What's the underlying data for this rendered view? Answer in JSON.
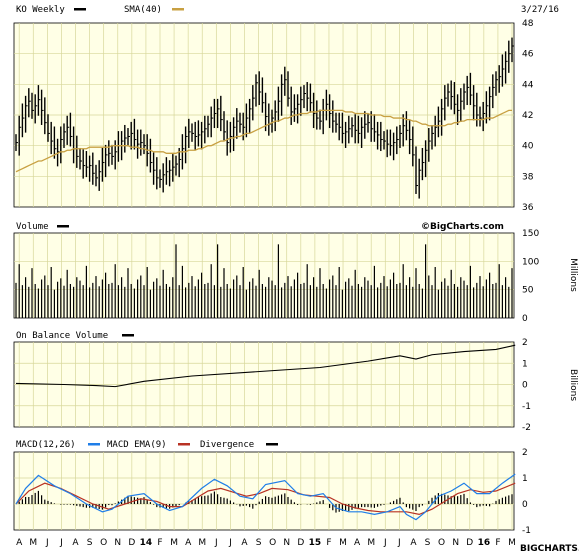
{
  "header": {
    "symbol_label": "KO Weekly",
    "sma_label": "SMA(40)",
    "date": "3/27/16"
  },
  "watermark": "©BigCharts.com",
  "footer_brand": "BIGCHARTS.COM",
  "colors": {
    "background": "#ffffe6",
    "grid": "#d7d79a",
    "price": "#000000",
    "sma": "#c8a042",
    "macd": "#1f7ee8",
    "macd_ema": "#b83224",
    "divergence": "#000000"
  },
  "x_labels": [
    "A",
    "M",
    "J",
    "J",
    "A",
    "S",
    "O",
    "N",
    "D",
    "14",
    "F",
    "M",
    "A",
    "M",
    "J",
    "J",
    "A",
    "S",
    "O",
    "N",
    "D",
    "15",
    "F",
    "M",
    "A",
    "M",
    "J",
    "J",
    "A",
    "S",
    "O",
    "N",
    "D",
    "16",
    "F",
    "M"
  ],
  "chart_data": [
    {
      "type": "line",
      "name": "price",
      "title": "KO Weekly",
      "legend": [
        "KO Weekly",
        "SMA(40)"
      ],
      "ylim": [
        36,
        48
      ],
      "yticks": [
        36,
        38,
        40,
        42,
        44,
        46,
        48
      ],
      "weeks": 156,
      "price_close": [
        40.2,
        41.2,
        41.8,
        42.6,
        42.9,
        42.3,
        42.6,
        43.0,
        42.3,
        41.5,
        40.8,
        40.3,
        39.8,
        39.6,
        40.4,
        40.9,
        41.2,
        40.6,
        39.8,
        39.3,
        39.0,
        38.7,
        38.6,
        38.7,
        38.2,
        37.9,
        38.3,
        38.9,
        39.4,
        39.5,
        39.3,
        39.6,
        40.0,
        40.3,
        40.5,
        40.6,
        40.8,
        40.4,
        40.1,
        40.2,
        40.0,
        39.5,
        38.9,
        38.4,
        37.9,
        37.8,
        38.1,
        38.3,
        38.4,
        38.6,
        38.8,
        39.1,
        39.8,
        40.6,
        40.9,
        40.8,
        40.6,
        40.7,
        40.9,
        41.1,
        41.4,
        41.8,
        42.1,
        42.4,
        41.7,
        40.9,
        40.2,
        40.6,
        41.2,
        41.6,
        41.4,
        41.2,
        41.8,
        42.4,
        43.1,
        44.1,
        43.5,
        42.8,
        41.9,
        41.4,
        41.8,
        42.2,
        42.9,
        44.0,
        44.3,
        43.1,
        42.2,
        42.4,
        42.7,
        43.0,
        43.4,
        43.1,
        42.8,
        42.1,
        41.8,
        41.6,
        42.3,
        42.7,
        42.1,
        41.6,
        41.4,
        41.2,
        40.8,
        40.9,
        41.1,
        41.3,
        41.0,
        40.8,
        41.2,
        41.4,
        41.5,
        41.1,
        40.9,
        40.7,
        40.4,
        40.3,
        40.1,
        40.0,
        40.2,
        40.4,
        40.8,
        41.3,
        41.0,
        40.4,
        39.4,
        37.4,
        38.4,
        38.9,
        39.7,
        40.3,
        40.8,
        41.2,
        41.6,
        42.4,
        43.1,
        43.5,
        43.2,
        42.7,
        42.3,
        42.9,
        43.5,
        43.8,
        43.3,
        42.6,
        42.0,
        41.8,
        42.1,
        42.6,
        43.2,
        43.8,
        44.3,
        44.5,
        45.0,
        45.5,
        46.0,
        46.5
      ],
      "sma": [
        38.3,
        38.4,
        38.5,
        38.6,
        38.7,
        38.8,
        38.9,
        39.0,
        39.0,
        39.1,
        39.2,
        39.3,
        39.4,
        39.5,
        39.6,
        39.6,
        39.7,
        39.7,
        39.8,
        39.8,
        39.8,
        39.8,
        39.8,
        39.9,
        39.9,
        39.9,
        39.9,
        39.9,
        39.9,
        39.9,
        40.0,
        40.0,
        40.0,
        40.0,
        40.0,
        40.0,
        39.9,
        39.9,
        39.9,
        39.8,
        39.8,
        39.7,
        39.7,
        39.6,
        39.6,
        39.6,
        39.6,
        39.5,
        39.5,
        39.5,
        39.5,
        39.6,
        39.6,
        39.6,
        39.7,
        39.7,
        39.7,
        39.8,
        39.8,
        39.9,
        40.0,
        40.0,
        40.1,
        40.2,
        40.3,
        40.3,
        40.4,
        40.5,
        40.5,
        40.6,
        40.6,
        40.7,
        40.8,
        40.8,
        40.9,
        41.0,
        41.1,
        41.2,
        41.3,
        41.4,
        41.5,
        41.6,
        41.6,
        41.7,
        41.8,
        41.8,
        41.9,
        42.0,
        42.0,
        42.1,
        42.1,
        42.1,
        42.2,
        42.2,
        42.2,
        42.3,
        42.3,
        42.3,
        42.3,
        42.3,
        42.3,
        42.3,
        42.3,
        42.2,
        42.2,
        42.2,
        42.1,
        42.1,
        42.1,
        42.1,
        42.1,
        42.0,
        42.0,
        42.0,
        42.0,
        41.9,
        41.9,
        41.9,
        41.8,
        41.8,
        41.8,
        41.8,
        41.7,
        41.7,
        41.6,
        41.6,
        41.5,
        41.4,
        41.4,
        41.3,
        41.3,
        41.3,
        41.3,
        41.3,
        41.3,
        41.4,
        41.4,
        41.5,
        41.5,
        41.6,
        41.6,
        41.7,
        41.7,
        41.7,
        41.7,
        41.7,
        41.7,
        41.8,
        41.8,
        41.8,
        41.9,
        42.0,
        42.1,
        42.2,
        42.3,
        42.3
      ]
    },
    {
      "type": "bar",
      "name": "volume",
      "title": "Volume",
      "ylabel": "Millions",
      "ylim": [
        0,
        150
      ],
      "yticks": [
        0,
        50,
        100,
        150
      ],
      "pattern": [
        62,
        95,
        58,
        72,
        55,
        88,
        60,
        52,
        68,
        75,
        58,
        90,
        50,
        64,
        70,
        57,
        85,
        60,
        55,
        72,
        66,
        58,
        92,
        54,
        62,
        74,
        56,
        68,
        80,
        60
      ]
    },
    {
      "type": "line",
      "name": "on_balance_volume",
      "title": "On Balance Volume",
      "ylabel": "Billions",
      "ylim": [
        -2,
        2
      ],
      "yticks": [
        -2,
        -1,
        0,
        1,
        2
      ],
      "x": [
        0,
        15,
        25,
        31,
        40,
        55,
        75,
        95,
        110,
        120,
        125,
        130,
        140,
        150,
        156
      ],
      "y": [
        0.05,
        0.0,
        -0.05,
        -0.1,
        0.15,
        0.4,
        0.6,
        0.8,
        1.1,
        1.35,
        1.2,
        1.4,
        1.55,
        1.65,
        1.85
      ]
    },
    {
      "type": "line",
      "name": "macd",
      "title": "MACD(12,26)",
      "legend": [
        "MACD(12,26)",
        "MACD EMA(9)",
        "Divergence"
      ],
      "ylim": [
        -1,
        2
      ],
      "yticks": [
        -1,
        0,
        1,
        2
      ],
      "macd_x": [
        0,
        3,
        7,
        12,
        17,
        22,
        27,
        30,
        35,
        40,
        44,
        48,
        52,
        58,
        62,
        66,
        70,
        74,
        78,
        84,
        88,
        92,
        96,
        100,
        104,
        108,
        112,
        116,
        120,
        122,
        125,
        128,
        132,
        136,
        140,
        144,
        148,
        152,
        156
      ],
      "macd_y": [
        0.0,
        0.6,
        1.1,
        0.7,
        0.4,
        0.0,
        -0.3,
        -0.2,
        0.3,
        0.4,
        0.0,
        -0.25,
        -0.1,
        0.6,
        0.95,
        0.7,
        0.3,
        0.2,
        0.75,
        0.9,
        0.4,
        0.3,
        0.4,
        -0.15,
        -0.3,
        -0.3,
        -0.4,
        -0.3,
        -0.1,
        -0.4,
        -0.6,
        -0.3,
        0.3,
        0.5,
        0.8,
        0.4,
        0.4,
        0.8,
        1.15
      ],
      "ema_x": [
        0,
        4,
        9,
        14,
        19,
        24,
        29,
        34,
        39,
        44,
        48,
        52,
        56,
        60,
        64,
        68,
        72,
        76,
        80,
        85,
        90,
        94,
        98,
        102,
        106,
        110,
        114,
        118,
        122,
        126,
        130,
        134,
        138,
        142,
        146,
        150,
        156
      ],
      "ema_y": [
        0.0,
        0.5,
        0.8,
        0.6,
        0.3,
        0.0,
        -0.2,
        0.0,
        0.2,
        0.1,
        -0.1,
        -0.1,
        0.2,
        0.5,
        0.6,
        0.45,
        0.3,
        0.4,
        0.6,
        0.55,
        0.35,
        0.3,
        0.25,
        0.0,
        -0.15,
        -0.25,
        -0.3,
        -0.3,
        -0.3,
        -0.4,
        -0.2,
        0.1,
        0.4,
        0.55,
        0.45,
        0.5,
        0.8
      ]
    }
  ]
}
